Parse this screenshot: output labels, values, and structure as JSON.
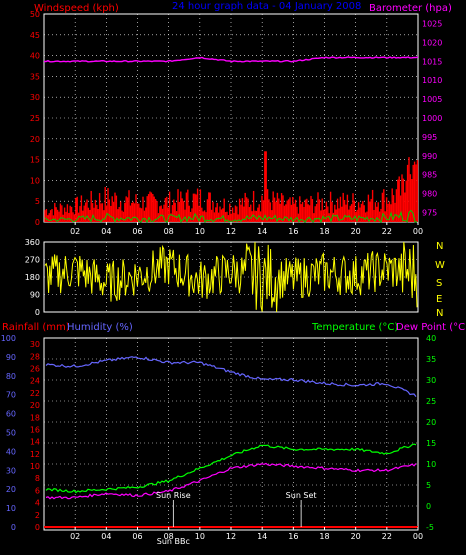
{
  "header": {
    "left_title": "Windspeed (kph)",
    "center_title": "24 hour graph data - 04 January 2008",
    "right_title": "Barometer (hpa)"
  },
  "labels": {
    "rainfall": "Rainfall (mm)",
    "humidity": "Humidity (%)",
    "temperature": "Temperature (°C)",
    "dewpoint": "Dew Point (°C)",
    "sunrise": "Sun Rise",
    "sunset": "Sun Set",
    "sun_bbc": "Sun BBc"
  },
  "compass": [
    "N",
    "W",
    "S",
    "E",
    "N"
  ],
  "colors": {
    "background": "#000000",
    "wind": "#ff0000",
    "gust": "#00cc00",
    "barometer": "#ff00ff",
    "direction": "#ffff00",
    "humidity": "#6666ff",
    "temperature": "#00ff00",
    "dewpoint": "#ff00ff",
    "rainfall": "#ff0000",
    "title": "#0000ff",
    "grid": "#ffffff"
  },
  "chart_data": [
    {
      "type": "area",
      "panel": "wind-barometer",
      "x_ticks": [
        "02",
        "04",
        "06",
        "08",
        "10",
        "12",
        "14",
        "16",
        "18",
        "20",
        "22",
        "00"
      ],
      "y_left_ticks": [
        0,
        5,
        10,
        15,
        20,
        25,
        30,
        35,
        40,
        45,
        50
      ],
      "y_right_ticks": [
        975,
        980,
        985,
        990,
        995,
        1000,
        1005,
        1010,
        1015,
        1020,
        1025
      ],
      "ylim_left": [
        0,
        50
      ],
      "ylim_right": [
        972.5,
        1027.5
      ],
      "x_hours": [
        0,
        2,
        4,
        6,
        8,
        10,
        12,
        14,
        16,
        18,
        20,
        22,
        24
      ],
      "series": [
        {
          "name": "Windspeed (kph)",
          "values": [
            3,
            4,
            6,
            5,
            5,
            6,
            4,
            6,
            4,
            5,
            5,
            6,
            10
          ]
        },
        {
          "name": "Barometer (hpa)",
          "values": [
            1015,
            1015,
            1015,
            1015,
            1015,
            1016,
            1015,
            1015,
            1015,
            1016,
            1016,
            1016,
            1016
          ]
        }
      ]
    },
    {
      "type": "line",
      "panel": "wind-direction",
      "x_ticks": [
        "02",
        "04",
        "06",
        "08",
        "10",
        "12",
        "14",
        "16",
        "18",
        "20",
        "22",
        "00"
      ],
      "y_ticks": [
        0,
        90,
        180,
        270,
        360
      ],
      "ylim": [
        0,
        360
      ],
      "series": [
        {
          "name": "Wind direction",
          "values": [
            180,
            220,
            150,
            190,
            240,
            160,
            210,
            180,
            170,
            200,
            190,
            220,
            200
          ]
        }
      ]
    },
    {
      "type": "line",
      "panel": "temp-humidity-rain",
      "x_ticks": [
        "02",
        "04",
        "06",
        "08",
        "10",
        "12",
        "14",
        "16",
        "18",
        "20",
        "22",
        "00"
      ],
      "y_humidity_ticks": [
        0,
        10,
        20,
        30,
        40,
        50,
        60,
        70,
        80,
        90,
        100
      ],
      "y_rain_ticks": [
        0,
        2,
        4,
        6,
        8,
        10,
        12,
        14,
        16,
        18,
        20,
        22,
        24,
        26,
        28,
        30
      ],
      "y_temp_ticks": [
        -5,
        0,
        5,
        10,
        15,
        20,
        25,
        30,
        35,
        40
      ],
      "ylim_temp": [
        -5,
        40
      ],
      "x_hours": [
        0,
        2,
        4,
        6,
        8,
        10,
        12,
        14,
        16,
        18,
        20,
        22,
        24
      ],
      "series": [
        {
          "name": "Humidity (%)",
          "values": [
            86,
            85,
            88,
            90,
            87,
            87,
            82,
            78,
            78,
            76,
            75,
            76,
            69
          ]
        },
        {
          "name": "Temperature (°C)",
          "values": [
            4,
            3.5,
            4,
            4.5,
            6,
            9,
            12,
            14.5,
            13.5,
            13.5,
            13.5,
            12.5,
            15
          ]
        },
        {
          "name": "Dew Point (°C)",
          "values": [
            2,
            2,
            3,
            2.5,
            3.5,
            6,
            9,
            10,
            9.5,
            9,
            8.5,
            8.5,
            10
          ]
        },
        {
          "name": "Rainfall (mm)",
          "values": [
            0,
            0,
            0,
            0,
            0,
            0,
            0,
            0,
            0,
            0,
            0,
            0,
            0
          ]
        }
      ],
      "annotations": [
        {
          "text": "Sun Rise",
          "hour": 8.3
        },
        {
          "text": "Sun Set",
          "hour": 16.5
        }
      ]
    }
  ]
}
